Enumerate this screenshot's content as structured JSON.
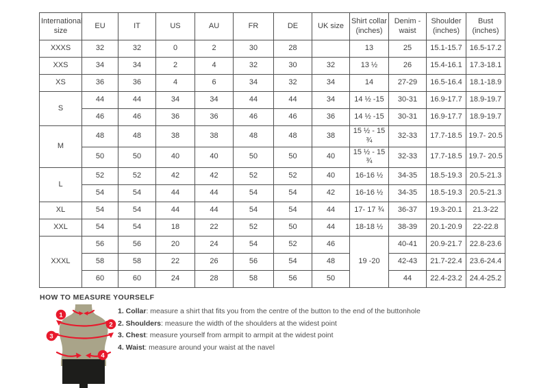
{
  "table": {
    "headers": [
      "International size",
      "EU",
      "IT",
      "US",
      "AU",
      "FR",
      "DE",
      "UK size",
      "Shirt collar (inches)",
      "Denim - waist",
      "Shoulder (inches)",
      "Bust (inches)"
    ],
    "rows": [
      [
        {
          "t": "XXXS"
        },
        {
          "t": "32"
        },
        {
          "t": "32"
        },
        {
          "t": "0"
        },
        {
          "t": "2"
        },
        {
          "t": "30"
        },
        {
          "t": "28"
        },
        {
          "t": ""
        },
        {
          "t": "13"
        },
        {
          "t": "25"
        },
        {
          "t": "15.1-15.7"
        },
        {
          "t": "16.5-17.2"
        }
      ],
      [
        {
          "t": "XXS"
        },
        {
          "t": "34"
        },
        {
          "t": "34"
        },
        {
          "t": "2"
        },
        {
          "t": "4"
        },
        {
          "t": "32"
        },
        {
          "t": "30"
        },
        {
          "t": "32"
        },
        {
          "t": "13 ½"
        },
        {
          "t": "26"
        },
        {
          "t": "15.4-16.1"
        },
        {
          "t": "17.3-18.1"
        }
      ],
      [
        {
          "t": "XS"
        },
        {
          "t": "36"
        },
        {
          "t": "36"
        },
        {
          "t": "4"
        },
        {
          "t": "6"
        },
        {
          "t": "34"
        },
        {
          "t": "32"
        },
        {
          "t": "34"
        },
        {
          "t": "14"
        },
        {
          "t": "27-29"
        },
        {
          "t": "16.5-16.4"
        },
        {
          "t": "18.1-18.9"
        }
      ],
      [
        {
          "t": "S",
          "rs": 2
        },
        {
          "t": "44"
        },
        {
          "t": "44"
        },
        {
          "t": "34"
        },
        {
          "t": "34"
        },
        {
          "t": "44"
        },
        {
          "t": "44"
        },
        {
          "t": "34"
        },
        {
          "t": "14 ½ -15"
        },
        {
          "t": "30-31"
        },
        {
          "t": "16.9-17.7"
        },
        {
          "t": "18.9-19.7"
        }
      ],
      [
        null,
        {
          "t": "46"
        },
        {
          "t": "46"
        },
        {
          "t": "36"
        },
        {
          "t": "36"
        },
        {
          "t": "46"
        },
        {
          "t": "46"
        },
        {
          "t": "36"
        },
        {
          "t": "14 ½ -15"
        },
        {
          "t": "30-31"
        },
        {
          "t": "16.9-17.7"
        },
        {
          "t": "18.9-19.7"
        }
      ],
      [
        {
          "t": "M",
          "rs": 2
        },
        {
          "t": "48"
        },
        {
          "t": "48"
        },
        {
          "t": "38"
        },
        {
          "t": "38"
        },
        {
          "t": "48"
        },
        {
          "t": "48"
        },
        {
          "t": "38"
        },
        {
          "t": "15 ½ - 15 ¾"
        },
        {
          "t": "32-33"
        },
        {
          "t": "17.7-18.5"
        },
        {
          "t": "19.7- 20.5"
        }
      ],
      [
        null,
        {
          "t": "50"
        },
        {
          "t": "50"
        },
        {
          "t": "40"
        },
        {
          "t": "40"
        },
        {
          "t": "50"
        },
        {
          "t": "50"
        },
        {
          "t": "40"
        },
        {
          "t": "15 ½ - 15 ¾"
        },
        {
          "t": "32-33"
        },
        {
          "t": "17.7-18.5"
        },
        {
          "t": "19.7- 20.5"
        }
      ],
      [
        {
          "t": "L",
          "rs": 2
        },
        {
          "t": "52"
        },
        {
          "t": "52"
        },
        {
          "t": "42"
        },
        {
          "t": "42"
        },
        {
          "t": "52"
        },
        {
          "t": "52"
        },
        {
          "t": "40"
        },
        {
          "t": "16-16 ½"
        },
        {
          "t": "34-35"
        },
        {
          "t": "18.5-19.3"
        },
        {
          "t": "20.5-21.3"
        }
      ],
      [
        null,
        {
          "t": "54"
        },
        {
          "t": "54"
        },
        {
          "t": "44"
        },
        {
          "t": "44"
        },
        {
          "t": "54"
        },
        {
          "t": "54"
        },
        {
          "t": "42"
        },
        {
          "t": "16-16 ½"
        },
        {
          "t": "34-35"
        },
        {
          "t": "18.5-19.3"
        },
        {
          "t": "20.5-21.3"
        }
      ],
      [
        {
          "t": "XL"
        },
        {
          "t": "54"
        },
        {
          "t": "54"
        },
        {
          "t": "44"
        },
        {
          "t": "44"
        },
        {
          "t": "54"
        },
        {
          "t": "54"
        },
        {
          "t": "44"
        },
        {
          "t": "17- 17 ¾"
        },
        {
          "t": "36-37"
        },
        {
          "t": "19.3-20.1"
        },
        {
          "t": "21.3-22"
        }
      ],
      [
        {
          "t": "XXL"
        },
        {
          "t": "54"
        },
        {
          "t": "54"
        },
        {
          "t": "18"
        },
        {
          "t": "22"
        },
        {
          "t": "52"
        },
        {
          "t": "50"
        },
        {
          "t": "44"
        },
        {
          "t": "18-18 ½"
        },
        {
          "t": "38-39"
        },
        {
          "t": "20.1-20.9"
        },
        {
          "t": "22-22.8"
        }
      ],
      [
        {
          "t": "XXXL",
          "rs": 3
        },
        {
          "t": "56"
        },
        {
          "t": "56"
        },
        {
          "t": "20"
        },
        {
          "t": "24"
        },
        {
          "t": "54"
        },
        {
          "t": "52"
        },
        {
          "t": "46"
        },
        {
          "t": "19 -20",
          "rs": 3
        },
        {
          "t": "40-41"
        },
        {
          "t": "20.9-21.7"
        },
        {
          "t": "22.8-23.6"
        }
      ],
      [
        null,
        {
          "t": "58"
        },
        {
          "t": "58"
        },
        {
          "t": "22"
        },
        {
          "t": "26"
        },
        {
          "t": "56"
        },
        {
          "t": "54"
        },
        {
          "t": "48"
        },
        null,
        {
          "t": "42-43"
        },
        {
          "t": "21.7-22.4"
        },
        {
          "t": "23.6-24.4"
        }
      ],
      [
        null,
        {
          "t": "60"
        },
        {
          "t": "60"
        },
        {
          "t": "24"
        },
        {
          "t": "28"
        },
        {
          "t": "58"
        },
        {
          "t": "56"
        },
        {
          "t": "50"
        },
        null,
        {
          "t": "44"
        },
        {
          "t": "22.4-23.2"
        },
        {
          "t": "24.4-25.2"
        }
      ]
    ]
  },
  "measure": {
    "title": "HOW TO MEASURE YOURSELF",
    "items": [
      {
        "num": "1.",
        "label": "Collar",
        "text": ": measure a shirt that fits you from the centre of the button to the end of the buttonhole"
      },
      {
        "num": "2.",
        "label": "Shoulders",
        "text": ": measure the width of the shoulders at the widest point"
      },
      {
        "num": "3.",
        "label": "Chest",
        "text": ": measure yourself from armpit to armpit at the widest point"
      },
      {
        "num": "4.",
        "label": "Waist",
        "text": ": measure around your waist at the navel"
      }
    ]
  },
  "mannequin": {
    "badges": [
      "1",
      "2",
      "3",
      "4"
    ]
  },
  "colors": {
    "accent_red": "#e8192c",
    "mannequin_body": "#a9a489",
    "mannequin_shorts": "#1d1d1b",
    "table_border": "#4f4f4f",
    "text": "#3d3d3d"
  }
}
